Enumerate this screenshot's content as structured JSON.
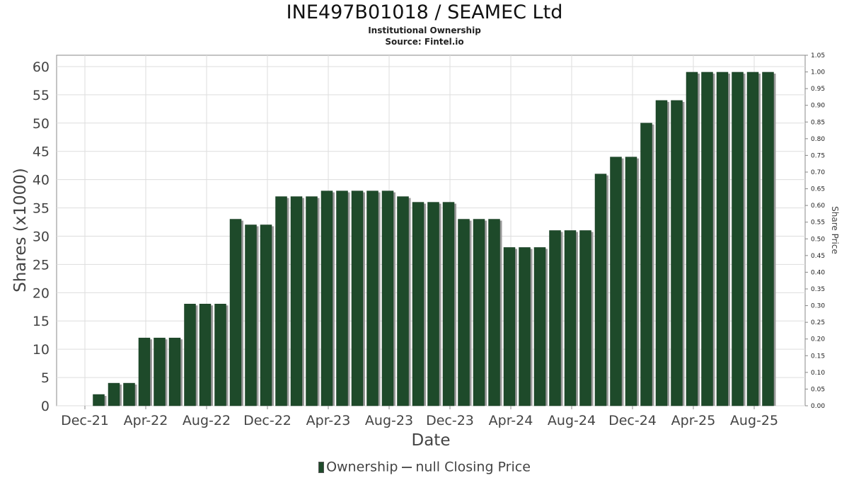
{
  "header": {
    "title": "INE497B01018 / SEAMEC Ltd",
    "subtitle": "Institutional Ownership",
    "source": "Source: Fintel.io"
  },
  "legend": {
    "ownership_label": "Ownership",
    "price_label": "null Closing Price"
  },
  "colors": {
    "bar": "#1e4a2a",
    "bar_shadow": "#9a9a9a",
    "grid": "#dddddd",
    "axis": "#888888"
  },
  "chart_data": {
    "type": "bar",
    "title": "INE497B01018 / SEAMEC Ltd",
    "xlabel": "Date",
    "ylabel": "Shares (x1000)",
    "y2label": "Share Price",
    "ylim": [
      0,
      62
    ],
    "y2lim": [
      0,
      1.05
    ],
    "grid": true,
    "legend_position": "bottom",
    "y_ticks": [
      0,
      5,
      10,
      15,
      20,
      25,
      30,
      35,
      40,
      45,
      50,
      55,
      60
    ],
    "y2_ticks": [
      "0.00",
      "0.05",
      "0.10",
      "0.15",
      "0.20",
      "0.25",
      "0.30",
      "0.35",
      "0.40",
      "0.45",
      "0.50",
      "0.55",
      "0.60",
      "0.65",
      "0.70",
      "0.75",
      "0.80",
      "0.85",
      "0.90",
      "0.95",
      "1.00",
      "1.05"
    ],
    "x_ticks": [
      "Dec-21",
      "Apr-22",
      "Aug-22",
      "Dec-22",
      "Apr-23",
      "Aug-23",
      "Dec-23",
      "Apr-24",
      "Aug-24",
      "Dec-24",
      "Apr-25",
      "Aug-25"
    ],
    "series": [
      {
        "name": "Ownership",
        "values": [
          0,
          2,
          4,
          4,
          12,
          12,
          12,
          18,
          18,
          18,
          33,
          32,
          32,
          37,
          37,
          37,
          38,
          38,
          38,
          38,
          38,
          37,
          36,
          36,
          36,
          33,
          33,
          33,
          28,
          28,
          28,
          31,
          31,
          31,
          41,
          44,
          44,
          50,
          54,
          54,
          59,
          59,
          59,
          59,
          59,
          59
        ]
      }
    ]
  }
}
